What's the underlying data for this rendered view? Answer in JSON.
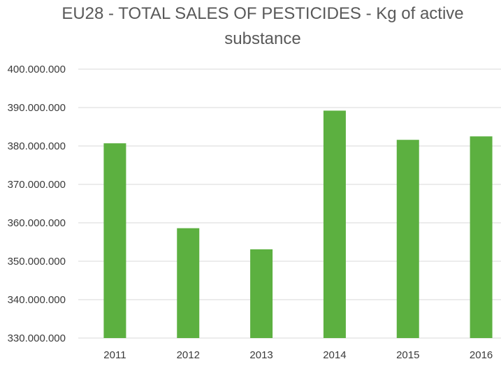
{
  "chart_data": {
    "type": "bar",
    "title_line1": "EU28 - TOTAL SALES OF PESTICIDES - Kg of active",
    "title_line2": "substance",
    "categories": [
      "2011",
      "2012",
      "2013",
      "2014",
      "2015",
      "2016"
    ],
    "values": [
      380700000,
      358600000,
      353100000,
      389200000,
      381600000,
      382500000
    ],
    "ylim": [
      330000000,
      400000000
    ],
    "yticks": [
      "330.000.000",
      "340.000.000",
      "350.000.000",
      "360.000.000",
      "370.000.000",
      "380.000.000",
      "390.000.000",
      "400.000.000"
    ],
    "grid": true,
    "legend": "none",
    "bar_color": "#5cb040",
    "grid_color": "#d9d9d9"
  }
}
